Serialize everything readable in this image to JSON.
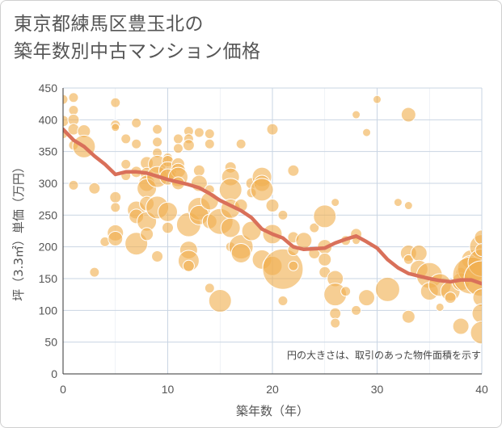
{
  "title_lines": [
    "東京都練馬区豊玉北の",
    "築年数別中古マンション価格"
  ],
  "note": "円の大きさは、取引のあった物件面積を示す",
  "colors": {
    "bubble": "#f0b050",
    "line": "#d9705a",
    "grid": "#c9d5e3"
  },
  "chart_data": {
    "type": "scatter",
    "xlabel": "築年数（年）",
    "ylabel": "坪（3.3㎡）単価（万円）",
    "xlim": [
      0,
      40
    ],
    "ylim": [
      0,
      450
    ],
    "xticks": [
      0,
      10,
      20,
      30,
      40
    ],
    "yticks": [
      0,
      50,
      100,
      150,
      200,
      250,
      300,
      350,
      400,
      450
    ],
    "bubbles": [
      [
        0,
        432,
        6
      ],
      [
        0,
        398,
        7
      ],
      [
        0,
        378,
        6
      ],
      [
        1,
        435,
        6
      ],
      [
        1,
        415,
        6
      ],
      [
        1,
        400,
        7
      ],
      [
        1,
        385,
        7
      ],
      [
        1,
        360,
        6
      ],
      [
        2,
        382,
        8
      ],
      [
        2,
        358,
        14
      ],
      [
        1,
        297,
        6
      ],
      [
        3,
        292,
        7
      ],
      [
        3,
        160,
        6
      ],
      [
        4,
        208,
        6
      ],
      [
        5,
        427,
        6
      ],
      [
        5,
        392,
        6
      ],
      [
        5,
        388,
        5
      ],
      [
        5,
        278,
        7
      ],
      [
        5,
        262,
        6
      ],
      [
        5,
        222,
        10
      ],
      [
        5,
        213,
        9
      ],
      [
        6,
        370,
        6
      ],
      [
        6,
        330,
        6
      ],
      [
        6,
        312,
        6
      ],
      [
        7,
        395,
        6
      ],
      [
        7,
        362,
        6
      ],
      [
        7,
        318,
        7
      ],
      [
        7,
        258,
        11
      ],
      [
        7,
        248,
        9
      ],
      [
        7,
        205,
        14
      ],
      [
        8,
        332,
        8
      ],
      [
        8,
        315,
        8
      ],
      [
        8,
        300,
        10
      ],
      [
        8,
        292,
        12
      ],
      [
        8,
        268,
        9
      ],
      [
        8,
        240,
        12
      ],
      [
        8,
        220,
        8
      ],
      [
        9,
        385,
        6
      ],
      [
        9,
        365,
        6
      ],
      [
        9,
        348,
        6
      ],
      [
        9,
        330,
        11
      ],
      [
        9,
        310,
        13
      ],
      [
        9,
        262,
        14
      ],
      [
        9,
        185,
        7
      ],
      [
        10,
        340,
        6
      ],
      [
        10,
        335,
        7
      ],
      [
        10,
        320,
        11
      ],
      [
        10,
        310,
        10
      ],
      [
        10,
        255,
        12
      ],
      [
        10,
        230,
        7
      ],
      [
        11,
        370,
        6
      ],
      [
        11,
        355,
        6
      ],
      [
        11,
        330,
        8
      ],
      [
        11,
        320,
        9
      ],
      [
        11,
        310,
        12
      ],
      [
        11,
        300,
        8
      ],
      [
        12,
        382,
        6
      ],
      [
        12,
        370,
        6
      ],
      [
        12,
        360,
        7
      ],
      [
        12,
        235,
        15
      ],
      [
        12,
        195,
        11
      ],
      [
        12,
        178,
        13
      ],
      [
        12,
        170,
        7
      ],
      [
        13,
        380,
        6
      ],
      [
        13,
        320,
        7
      ],
      [
        13,
        300,
        10
      ],
      [
        13,
        260,
        14
      ],
      [
        13,
        250,
        12
      ],
      [
        14,
        378,
        6
      ],
      [
        14,
        362,
        6
      ],
      [
        14,
        290,
        6
      ],
      [
        14,
        272,
        11
      ],
      [
        14,
        240,
        9
      ],
      [
        14,
        135,
        6
      ],
      [
        15,
        115,
        14
      ],
      [
        15,
        240,
        16
      ],
      [
        16,
        325,
        7
      ],
      [
        16,
        310,
        11
      ],
      [
        16,
        290,
        14
      ],
      [
        16,
        260,
        12
      ],
      [
        16,
        230,
        12
      ],
      [
        16,
        200,
        6
      ],
      [
        17,
        362,
        6
      ],
      [
        17,
        265,
        8
      ],
      [
        17,
        200,
        15
      ],
      [
        17,
        190,
        12
      ],
      [
        18,
        300,
        7
      ],
      [
        18,
        285,
        6
      ],
      [
        18,
        225,
        12
      ],
      [
        19,
        310,
        12
      ],
      [
        19,
        300,
        10
      ],
      [
        19,
        290,
        14
      ],
      [
        19,
        180,
        12
      ],
      [
        20,
        385,
        7
      ],
      [
        20,
        265,
        8
      ],
      [
        20,
        220,
        12
      ],
      [
        20,
        170,
        12
      ],
      [
        21,
        165,
        25
      ],
      [
        21,
        250,
        6
      ],
      [
        21,
        115,
        6
      ],
      [
        22,
        320,
        7
      ],
      [
        22,
        215,
        7
      ],
      [
        22,
        195,
        7
      ],
      [
        22,
        170,
        6
      ],
      [
        23,
        210,
        10
      ],
      [
        24,
        190,
        7
      ],
      [
        24,
        230,
        6
      ],
      [
        25,
        248,
        14
      ],
      [
        25,
        200,
        9
      ],
      [
        25,
        180,
        8
      ],
      [
        25,
        160,
        7
      ],
      [
        26,
        270,
        5
      ],
      [
        26,
        150,
        10
      ],
      [
        26,
        125,
        14
      ],
      [
        26,
        95,
        7
      ],
      [
        26,
        80,
        6
      ],
      [
        27,
        130,
        6
      ],
      [
        27,
        210,
        6
      ],
      [
        28,
        220,
        7
      ],
      [
        28,
        210,
        5
      ],
      [
        28,
        100,
        6
      ],
      [
        28,
        408,
        5
      ],
      [
        29,
        120,
        10
      ],
      [
        29,
        380,
        5
      ],
      [
        30,
        432,
        5
      ],
      [
        31,
        133,
        15
      ],
      [
        32,
        270,
        5
      ],
      [
        33,
        408,
        9
      ],
      [
        33,
        265,
        5
      ],
      [
        33,
        190,
        10
      ],
      [
        33,
        180,
        6
      ],
      [
        33,
        90,
        8
      ],
      [
        34,
        190,
        10
      ],
      [
        34,
        165,
        11
      ],
      [
        35,
        155,
        16
      ],
      [
        35,
        130,
        11
      ],
      [
        36,
        140,
        14
      ],
      [
        36,
        105,
        5
      ],
      [
        37,
        130,
        12
      ],
      [
        37,
        120,
        7
      ],
      [
        38,
        160,
        6
      ],
      [
        38,
        145,
        11
      ],
      [
        38,
        75,
        10
      ],
      [
        39,
        180,
        12
      ],
      [
        39,
        165,
        17
      ],
      [
        39,
        155,
        23
      ],
      [
        40,
        200,
        15
      ],
      [
        40,
        175,
        17
      ],
      [
        40,
        150,
        22
      ],
      [
        40,
        120,
        11
      ],
      [
        40,
        95,
        12
      ],
      [
        40,
        65,
        14
      ],
      [
        40,
        215,
        9
      ],
      [
        40,
        195,
        8
      ]
    ],
    "trend": [
      [
        0,
        385
      ],
      [
        1,
        368
      ],
      [
        2,
        358
      ],
      [
        3,
        343
      ],
      [
        4,
        330
      ],
      [
        5,
        314
      ],
      [
        6,
        318
      ],
      [
        7,
        318
      ],
      [
        8,
        316
      ],
      [
        9,
        311
      ],
      [
        10,
        306
      ],
      [
        11,
        302
      ],
      [
        12,
        298
      ],
      [
        13,
        293
      ],
      [
        14,
        284
      ],
      [
        15,
        273
      ],
      [
        16,
        265
      ],
      [
        17,
        257
      ],
      [
        18,
        246
      ],
      [
        19,
        228
      ],
      [
        20,
        220
      ],
      [
        21,
        214
      ],
      [
        22,
        200
      ],
      [
        23,
        196
      ],
      [
        24,
        197
      ],
      [
        25,
        198
      ],
      [
        26,
        206
      ],
      [
        27,
        212
      ],
      [
        28,
        217
      ],
      [
        29,
        208
      ],
      [
        30,
        198
      ],
      [
        31,
        180
      ],
      [
        32,
        167
      ],
      [
        33,
        158
      ],
      [
        34,
        154
      ],
      [
        35,
        150
      ],
      [
        36,
        147
      ],
      [
        37,
        145
      ],
      [
        38,
        148
      ],
      [
        39,
        148
      ],
      [
        40,
        142
      ]
    ]
  }
}
